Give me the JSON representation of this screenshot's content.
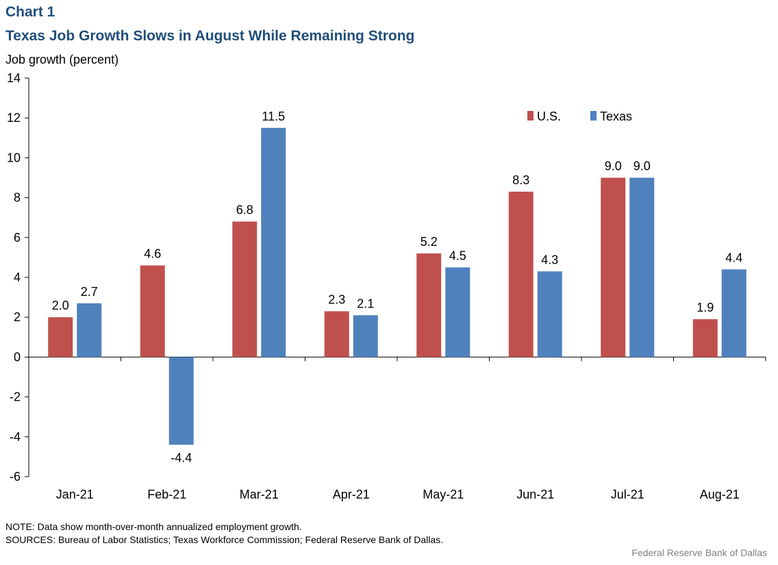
{
  "header": {
    "chart_label": "Chart 1",
    "title": "Texas Job Growth Slows in August While Remaining Strong"
  },
  "notes": {
    "note": "NOTE:  Data show month-over-month  annualized employment  growth.",
    "sources": "SOURCES:  Bureau of Labor Statistics; Texas  Workforce Commission;  Federal Reserve  Bank of Dallas."
  },
  "credit": "Federal Reserve  Bank of Dallas",
  "colors": {
    "us": "#c0504d",
    "texas": "#4f81bd"
  },
  "chart_data": {
    "type": "bar",
    "title": "Texas Job Growth Slows in August While Remaining Strong",
    "xlabel": "",
    "ylabel": "Job growth (percent)",
    "ylim": [
      -6,
      14
    ],
    "yticks": [
      -6,
      -4,
      -2,
      0,
      2,
      4,
      6,
      8,
      10,
      12,
      14
    ],
    "grid": false,
    "legend": "top-right",
    "categories": [
      "Jan-21",
      "Feb-21",
      "Mar-21",
      "Apr-21",
      "May-21",
      "Jun-21",
      "Jul-21",
      "Aug-21"
    ],
    "series": [
      {
        "name": "U.S.",
        "color": "#c0504d",
        "values": [
          2.0,
          4.6,
          6.8,
          2.3,
          5.2,
          8.3,
          9.0,
          1.9
        ]
      },
      {
        "name": "Texas",
        "color": "#4f81bd",
        "values": [
          2.7,
          -4.4,
          11.5,
          2.1,
          4.5,
          4.3,
          9.0,
          4.4
        ]
      }
    ]
  }
}
